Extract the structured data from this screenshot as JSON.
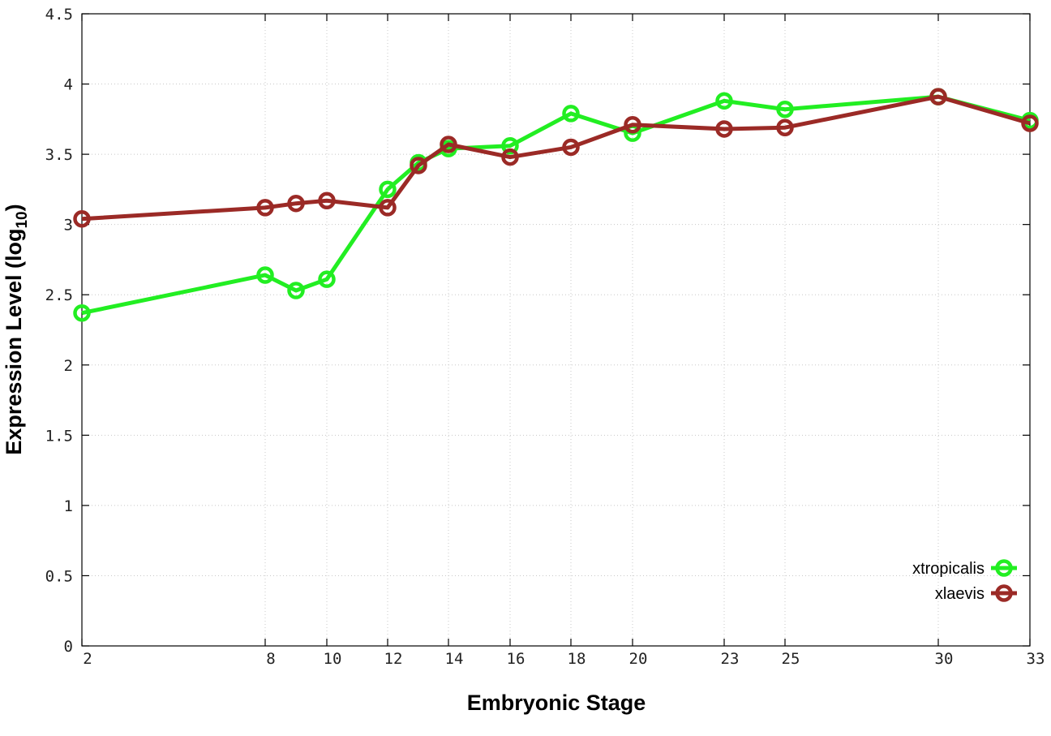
{
  "chart_data": {
    "type": "line",
    "xlabel": "Embryonic Stage",
    "ylabel_main": "Expression Level (log",
    "ylabel_sub": "10",
    "ylabel_close": ")",
    "x_ticks": [
      "2",
      "8",
      "10",
      "12",
      "14",
      "16",
      "18",
      "20",
      "23",
      "25",
      "30",
      "33"
    ],
    "y_ticks": [
      "0",
      "0.5",
      "1",
      "1.5",
      "2",
      "2.5",
      "3",
      "3.5",
      "4",
      "4.5"
    ],
    "ylim": [
      0,
      4.5
    ],
    "grid": true,
    "legend_position": "bottom-right",
    "series": [
      {
        "name": "xtropicalis",
        "color": "#22ee22",
        "points": [
          {
            "x": 2,
            "y": 2.37
          },
          {
            "x": 8,
            "y": 2.64
          },
          {
            "x": 9,
            "y": 2.53
          },
          {
            "x": 10,
            "y": 2.61
          },
          {
            "x": 12,
            "y": 3.25
          },
          {
            "x": 13,
            "y": 3.44
          },
          {
            "x": 14,
            "y": 3.54
          },
          {
            "x": 16,
            "y": 3.56
          },
          {
            "x": 18,
            "y": 3.79
          },
          {
            "x": 20,
            "y": 3.65
          },
          {
            "x": 23,
            "y": 3.88
          },
          {
            "x": 25,
            "y": 3.82
          },
          {
            "x": 30,
            "y": 3.91
          },
          {
            "x": 33,
            "y": 3.74
          }
        ]
      },
      {
        "name": "xlaevis",
        "color": "#9b2a26",
        "points": [
          {
            "x": 2,
            "y": 3.04
          },
          {
            "x": 8,
            "y": 3.12
          },
          {
            "x": 9,
            "y": 3.15
          },
          {
            "x": 10,
            "y": 3.17
          },
          {
            "x": 12,
            "y": 3.12
          },
          {
            "x": 13,
            "y": 3.42
          },
          {
            "x": 14,
            "y": 3.57
          },
          {
            "x": 16,
            "y": 3.48
          },
          {
            "x": 18,
            "y": 3.55
          },
          {
            "x": 20,
            "y": 3.71
          },
          {
            "x": 23,
            "y": 3.68
          },
          {
            "x": 25,
            "y": 3.69
          },
          {
            "x": 30,
            "y": 3.91
          },
          {
            "x": 33,
            "y": 3.72
          }
        ]
      }
    ]
  }
}
